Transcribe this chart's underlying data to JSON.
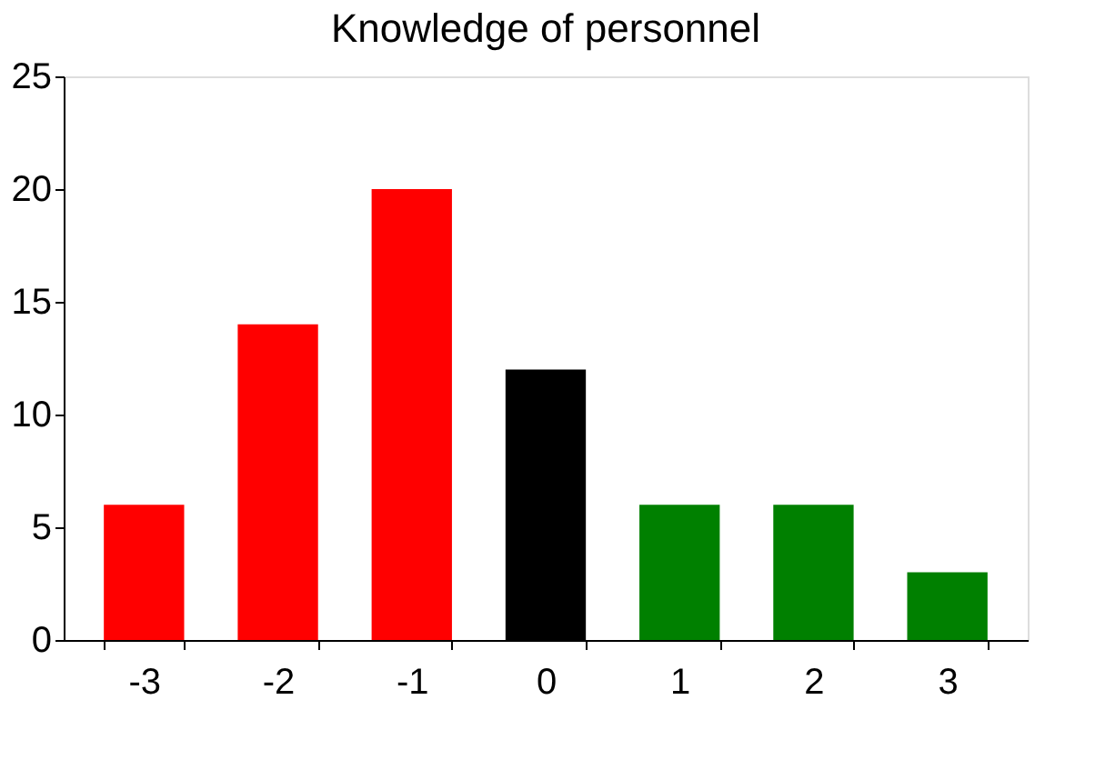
{
  "chart_data": {
    "type": "bar",
    "title": "Knowledge of personnel",
    "categories": [
      "-3",
      "-2",
      "-1",
      "0",
      "1",
      "2",
      "3"
    ],
    "values": [
      6,
      14,
      20,
      12,
      6,
      6,
      3
    ],
    "colors": [
      "#ff0000",
      "#ff0000",
      "#ff0000",
      "#000000",
      "#008000",
      "#008000",
      "#008000"
    ],
    "ylim": [
      0,
      25
    ],
    "yticks": [
      0,
      5,
      10,
      15,
      20,
      25
    ],
    "grid": false
  }
}
